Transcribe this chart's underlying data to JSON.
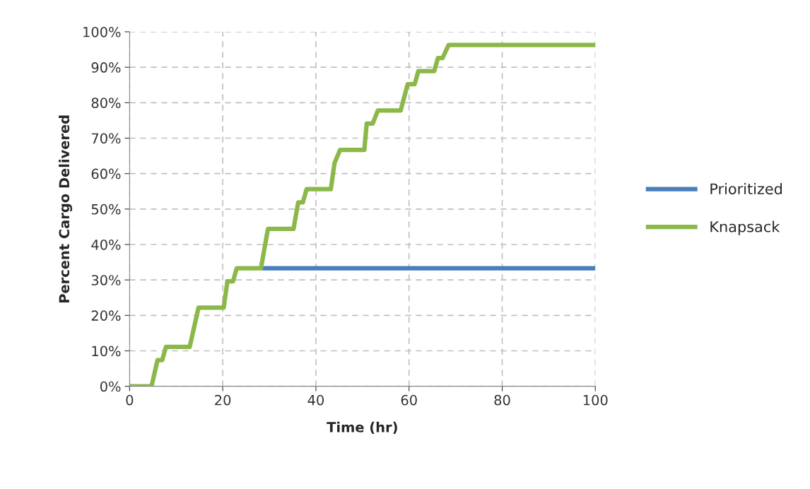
{
  "chart_data": {
    "type": "line",
    "xlabel": "Time (hr)",
    "ylabel": "Percent Cargo Delivered",
    "series": [
      {
        "name": "Prioritized",
        "color": "#4a7ebb",
        "x": [
          28.4,
          100
        ],
        "values": [
          33.3,
          33.3
        ]
      },
      {
        "name": "Knapsack",
        "color": "#8cb84a",
        "x": [
          0,
          4.7,
          6.0,
          7.0,
          7.8,
          12.9,
          14.8,
          20.2,
          21.0,
          22.2,
          23.0,
          28.2,
          29.7,
          35.2,
          36.2,
          37.2,
          38.0,
          43.2,
          44.0,
          45.2,
          50.4,
          50.9,
          52.2,
          53.3,
          58.2,
          59.7,
          61.2,
          62.0,
          65.4,
          66.2,
          67.2,
          68.5,
          100
        ],
        "values": [
          0,
          0,
          7.4,
          7.4,
          11.1,
          11.1,
          22.2,
          22.2,
          29.6,
          29.6,
          33.3,
          33.3,
          44.4,
          44.4,
          51.9,
          51.9,
          55.6,
          55.6,
          63.0,
          66.7,
          66.7,
          74.1,
          74.1,
          77.8,
          77.8,
          85.2,
          85.2,
          88.9,
          88.9,
          92.6,
          92.6,
          96.3,
          96.3
        ]
      }
    ],
    "xlim": [
      0,
      100
    ],
    "xticks": [
      0,
      20,
      40,
      60,
      80,
      100
    ],
    "ylim": [
      0,
      100
    ],
    "yticks": [
      {
        "value": 0,
        "label": "0%"
      },
      {
        "value": 10,
        "label": "10%"
      },
      {
        "value": 20,
        "label": "20%"
      },
      {
        "value": 30,
        "label": "30%"
      },
      {
        "value": 40,
        "label": "40%"
      },
      {
        "value": 50,
        "label": "50%"
      },
      {
        "value": 60,
        "label": "60%"
      },
      {
        "value": 70,
        "label": "70%"
      },
      {
        "value": 80,
        "label": "80%"
      },
      {
        "value": 90,
        "label": "90%"
      },
      {
        "value": 100,
        "label": "100%"
      }
    ],
    "grid": true,
    "line_style": "solid",
    "marker": "none",
    "legend": "right"
  }
}
